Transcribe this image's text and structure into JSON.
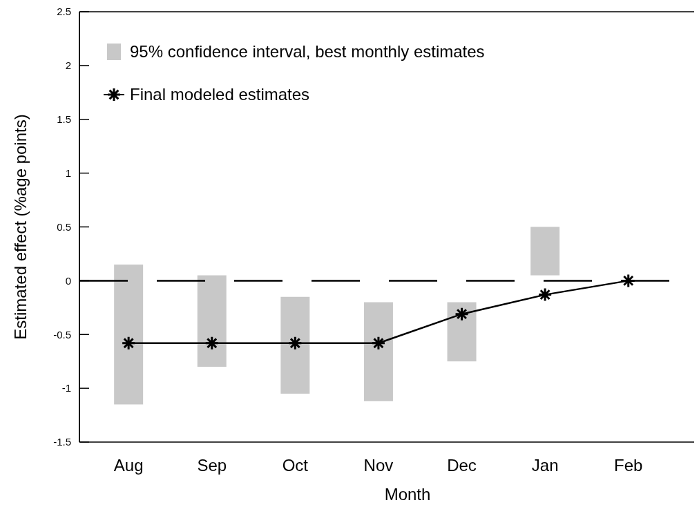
{
  "chart_data": {
    "type": "bar",
    "xlabel": "Month",
    "ylabel": "Estimated effect (%age points)",
    "categories": [
      "Aug",
      "Sep",
      "Oct",
      "Nov",
      "Dec",
      "Jan",
      "Feb"
    ],
    "series": [
      {
        "name": "95% confidence interval, best monthly estimates",
        "color": "#c8c8c8",
        "base": [
          -1.15,
          -0.8,
          -1.05,
          -1.12,
          -0.75,
          0.05,
          null
        ],
        "values": [
          1.3,
          0.85,
          0.9,
          0.92,
          0.55,
          0.45,
          null
        ]
      },
      {
        "name": "Final modeled estimates",
        "type": "line",
        "color": "#000000",
        "marker": "cross",
        "values": [
          -0.58,
          -0.58,
          -0.58,
          -0.58,
          -0.31,
          -0.13,
          0.0
        ]
      }
    ],
    "ylim": [
      -1.5,
      2.5
    ],
    "yticks": [
      {
        "value": -1.5,
        "label": "-1.5"
      },
      {
        "value": -1,
        "label": "-1"
      },
      {
        "value": -0.5,
        "label": "-0.5"
      },
      0,
      0.5,
      1,
      1.5,
      2,
      2.5
    ],
    "ref_lines": [
      {
        "axis": "y",
        "value": 0,
        "line_style": "dashed",
        "color": "#000000"
      }
    ],
    "legend": "top left",
    "grid": false
  }
}
